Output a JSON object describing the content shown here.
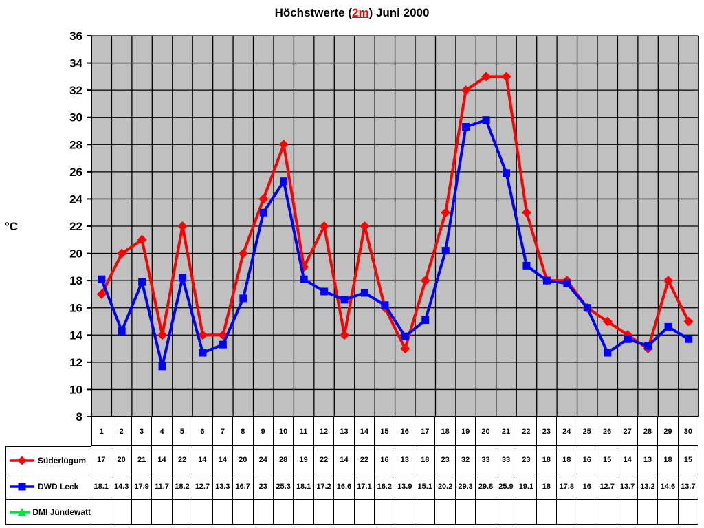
{
  "title": {
    "prefix": "Höchstwerte (",
    "highlight": "2m",
    "suffix": ") Juni 2000"
  },
  "chart_data": {
    "type": "line",
    "title": "Höchstwerte (2m) Juni 2000",
    "ylabel": "°C",
    "ylim": [
      8,
      36
    ],
    "ytick_step": 2,
    "grid": true,
    "plot_bg_color": "#c0c0c0",
    "grid_color": "#000000",
    "x": [
      1,
      2,
      3,
      4,
      5,
      6,
      7,
      8,
      9,
      10,
      11,
      12,
      13,
      14,
      15,
      16,
      17,
      18,
      19,
      20,
      21,
      22,
      23,
      24,
      25,
      26,
      27,
      28,
      29,
      30
    ],
    "series": [
      {
        "name": "Süderlügum",
        "color": "#ff0000",
        "marker": "diamond",
        "values": [
          17,
          20,
          21,
          14,
          22,
          14,
          14,
          20,
          24,
          28,
          19,
          22,
          14,
          22,
          16,
          13,
          18,
          23,
          32,
          33,
          33,
          23,
          18,
          18,
          16,
          15,
          14,
          13,
          18,
          15
        ]
      },
      {
        "name": "DWD Leck",
        "color": "#0000ff",
        "marker": "square",
        "values": [
          18.1,
          14.3,
          17.9,
          11.7,
          18.2,
          12.7,
          13.3,
          16.7,
          23,
          25.3,
          18.1,
          17.2,
          16.6,
          17.1,
          16.2,
          13.9,
          15.1,
          20.2,
          29.3,
          29.8,
          25.9,
          19.1,
          18,
          17.8,
          16,
          12.7,
          13.7,
          13.2,
          14.6,
          13.7
        ]
      },
      {
        "name": "DMI Jündewatt",
        "color": "#00e640",
        "marker": "triangle",
        "values": []
      }
    ]
  }
}
